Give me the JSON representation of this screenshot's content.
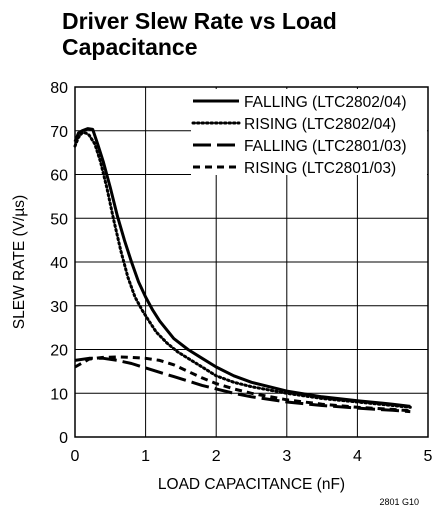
{
  "chart_data": {
    "type": "line",
    "title": [
      "Driver Slew Rate vs Load",
      "Capacitance"
    ],
    "xlabel": "LOAD CAPACITANCE (nF)",
    "ylabel": "SLEW RATE (V/µs)",
    "xlim": [
      0,
      5
    ],
    "ylim": [
      0,
      80
    ],
    "xticks": [
      "0",
      "1",
      "2",
      "3",
      "4",
      "5"
    ],
    "yticks": [
      "0",
      "10",
      "20",
      "30",
      "40",
      "50",
      "60",
      "70",
      "80"
    ],
    "grid": true,
    "legend_position": "top-right",
    "series": [
      {
        "name": "FALLING (LTC2802/04)",
        "style": "solid",
        "x": [
          0.0,
          0.05,
          0.1,
          0.18,
          0.25,
          0.32,
          0.4,
          0.5,
          0.6,
          0.7,
          0.8,
          0.9,
          1.0,
          1.1,
          1.2,
          1.4,
          1.6,
          1.8,
          2.0,
          2.25,
          2.5,
          3.0,
          3.5,
          4.0,
          4.5,
          4.75
        ],
        "y": [
          67.5,
          69.5,
          70.0,
          70.5,
          70.3,
          67,
          63,
          57,
          50.5,
          45,
          40,
          35.5,
          32,
          29,
          26.5,
          22.5,
          20,
          18,
          16,
          14,
          12.5,
          10.5,
          9.2,
          8.3,
          7.5,
          7.0
        ]
      },
      {
        "name": "RISING (LTC2802/04)",
        "style": "dotted",
        "x": [
          0.0,
          0.05,
          0.1,
          0.15,
          0.2,
          0.28,
          0.36,
          0.45,
          0.55,
          0.65,
          0.75,
          0.85,
          0.95,
          1.05,
          1.15,
          1.3,
          1.45,
          1.6,
          1.8,
          2.0,
          2.25,
          2.5,
          3.0,
          3.5,
          4.0,
          4.5,
          4.75
        ],
        "y": [
          66.5,
          68.5,
          69.5,
          69.5,
          69,
          67,
          63,
          57,
          49.5,
          42.5,
          36.5,
          32,
          29,
          26.5,
          24,
          21.5,
          19.5,
          18,
          16,
          14,
          12.5,
          11.5,
          10,
          8.8,
          8.0,
          7.2,
          6.8
        ]
      },
      {
        "name": "FALLING (LTC2801/03)",
        "style": "long-dash",
        "x": [
          0.0,
          0.2,
          0.4,
          0.6,
          0.8,
          1.0,
          1.2,
          1.4,
          1.6,
          1.8,
          2.0,
          2.25,
          2.5,
          3.0,
          3.5,
          4.0,
          4.5,
          4.75
        ],
        "y": [
          17.5,
          18.0,
          18.0,
          17.5,
          16.8,
          15.8,
          14.8,
          13.8,
          12.8,
          11.8,
          11.0,
          10.0,
          9.2,
          8.0,
          7.2,
          6.6,
          6.1,
          5.8
        ]
      },
      {
        "name": "RISING (LTC2801/03)",
        "style": "short-dash",
        "x": [
          0.0,
          0.2,
          0.4,
          0.6,
          0.8,
          1.0,
          1.2,
          1.4,
          1.6,
          1.8,
          2.0,
          2.25,
          2.5,
          3.0,
          3.5,
          4.0,
          4.5,
          4.75
        ],
        "y": [
          16.0,
          17.8,
          18.2,
          18.3,
          18.2,
          18.0,
          17.5,
          16.5,
          15.0,
          13.5,
          12.2,
          11.0,
          10.0,
          8.5,
          7.5,
          6.8,
          6.3,
          6.0
        ]
      }
    ],
    "footnote": "2801 G10"
  }
}
